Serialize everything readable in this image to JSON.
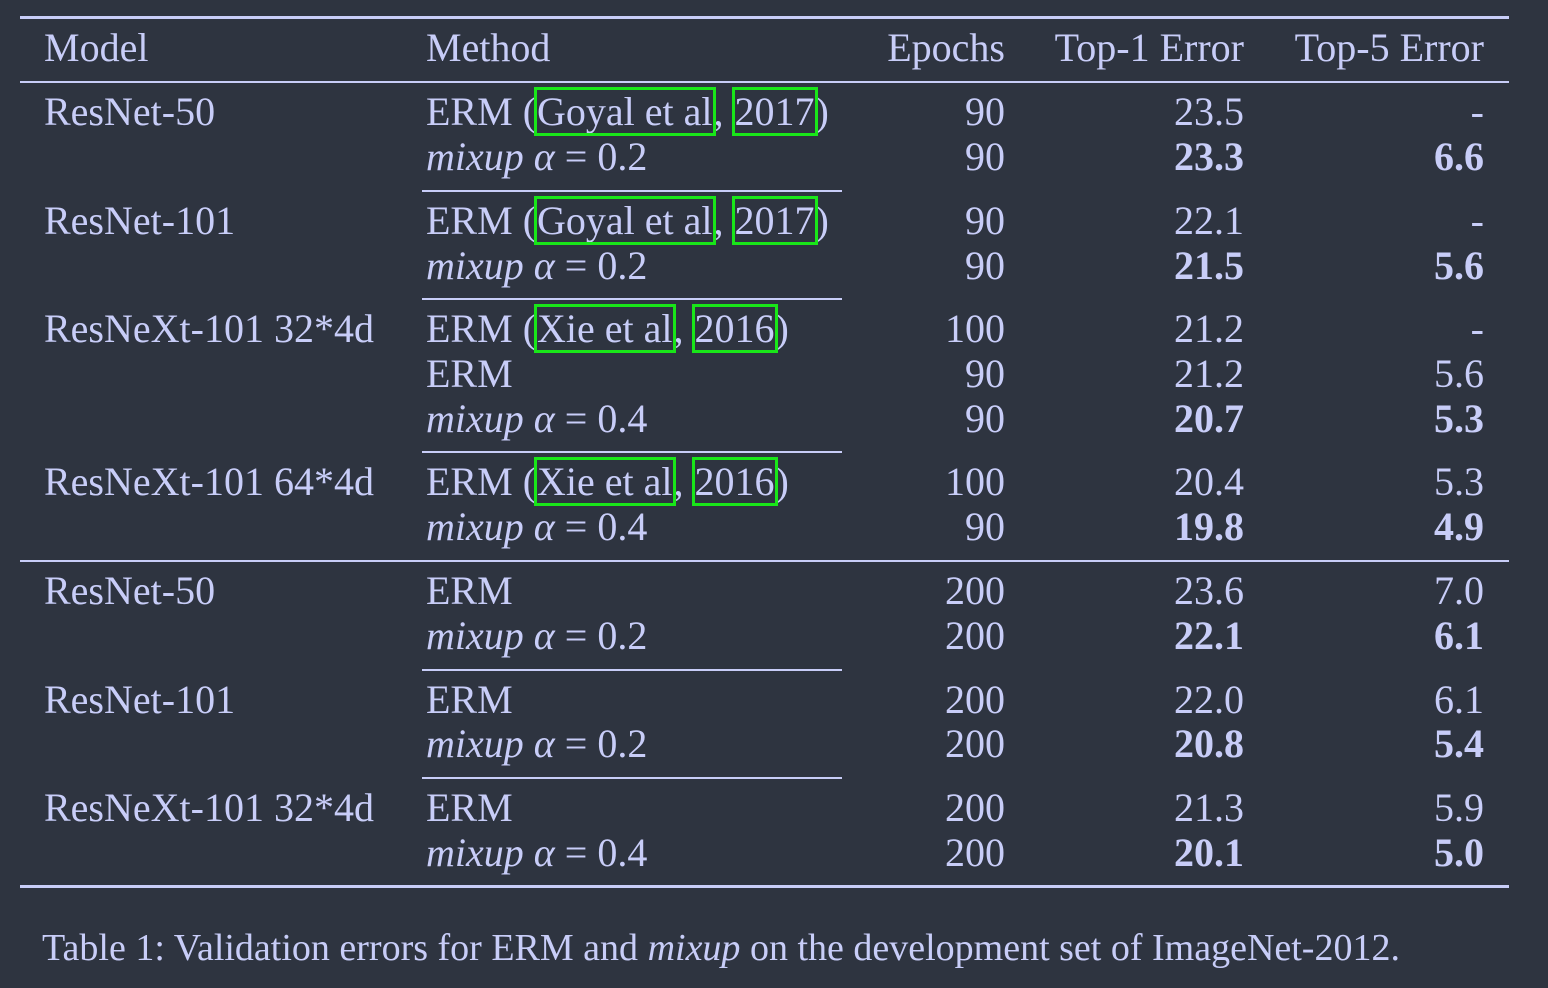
{
  "header": {
    "model": "Model",
    "method": "Method",
    "epochs": "Epochs",
    "top1": "Top-1 Error",
    "top5": "Top-5 Error"
  },
  "formula": {
    "mixup": "mixup",
    "alpha": "α",
    "eq": " = ",
    "a02": "0.2",
    "a04": "0.4"
  },
  "erm": "ERM",
  "cites": {
    "goyal_name": "Goyal et al",
    "goyal_year": "2017",
    "xie_name": "Xie et al",
    "xie_year": "2016"
  },
  "rows": [
    {
      "model": "ResNet-50",
      "epochs": "90",
      "top1": "23.5",
      "top5": "-"
    },
    {
      "model": "",
      "epochs": "90",
      "top1": "23.3",
      "top5": "6.6"
    },
    {
      "model": "ResNet-101",
      "epochs": "90",
      "top1": "22.1",
      "top5": "-"
    },
    {
      "model": "",
      "epochs": "90",
      "top1": "21.5",
      "top5": "5.6"
    },
    {
      "model": "ResNeXt-101 32*4d",
      "epochs": "100",
      "top1": "21.2",
      "top5": "-"
    },
    {
      "model": "",
      "epochs": "90",
      "top1": "21.2",
      "top5": "5.6"
    },
    {
      "model": "",
      "epochs": "90",
      "top1": "20.7",
      "top5": "5.3"
    },
    {
      "model": "ResNeXt-101 64*4d",
      "epochs": "100",
      "top1": "20.4",
      "top5": "5.3"
    },
    {
      "model": "",
      "epochs": "90",
      "top1": "19.8",
      "top5": "4.9"
    },
    {
      "model": "ResNet-50",
      "epochs": "200",
      "top1": "23.6",
      "top5": "7.0"
    },
    {
      "model": "",
      "epochs": "200",
      "top1": "22.1",
      "top5": "6.1"
    },
    {
      "model": "ResNet-101",
      "epochs": "200",
      "top1": "22.0",
      "top5": "6.1"
    },
    {
      "model": "",
      "epochs": "200",
      "top1": "20.8",
      "top5": "5.4"
    },
    {
      "model": "ResNeXt-101 32*4d",
      "epochs": "200",
      "top1": "21.3",
      "top5": "5.9"
    },
    {
      "model": "",
      "epochs": "200",
      "top1": "20.1",
      "top5": "5.0"
    }
  ],
  "caption": {
    "part1": "Table 1: Validation errors for ERM and ",
    "part2": "mixup",
    "part3": " on the development set of ImageNet-2012."
  }
}
